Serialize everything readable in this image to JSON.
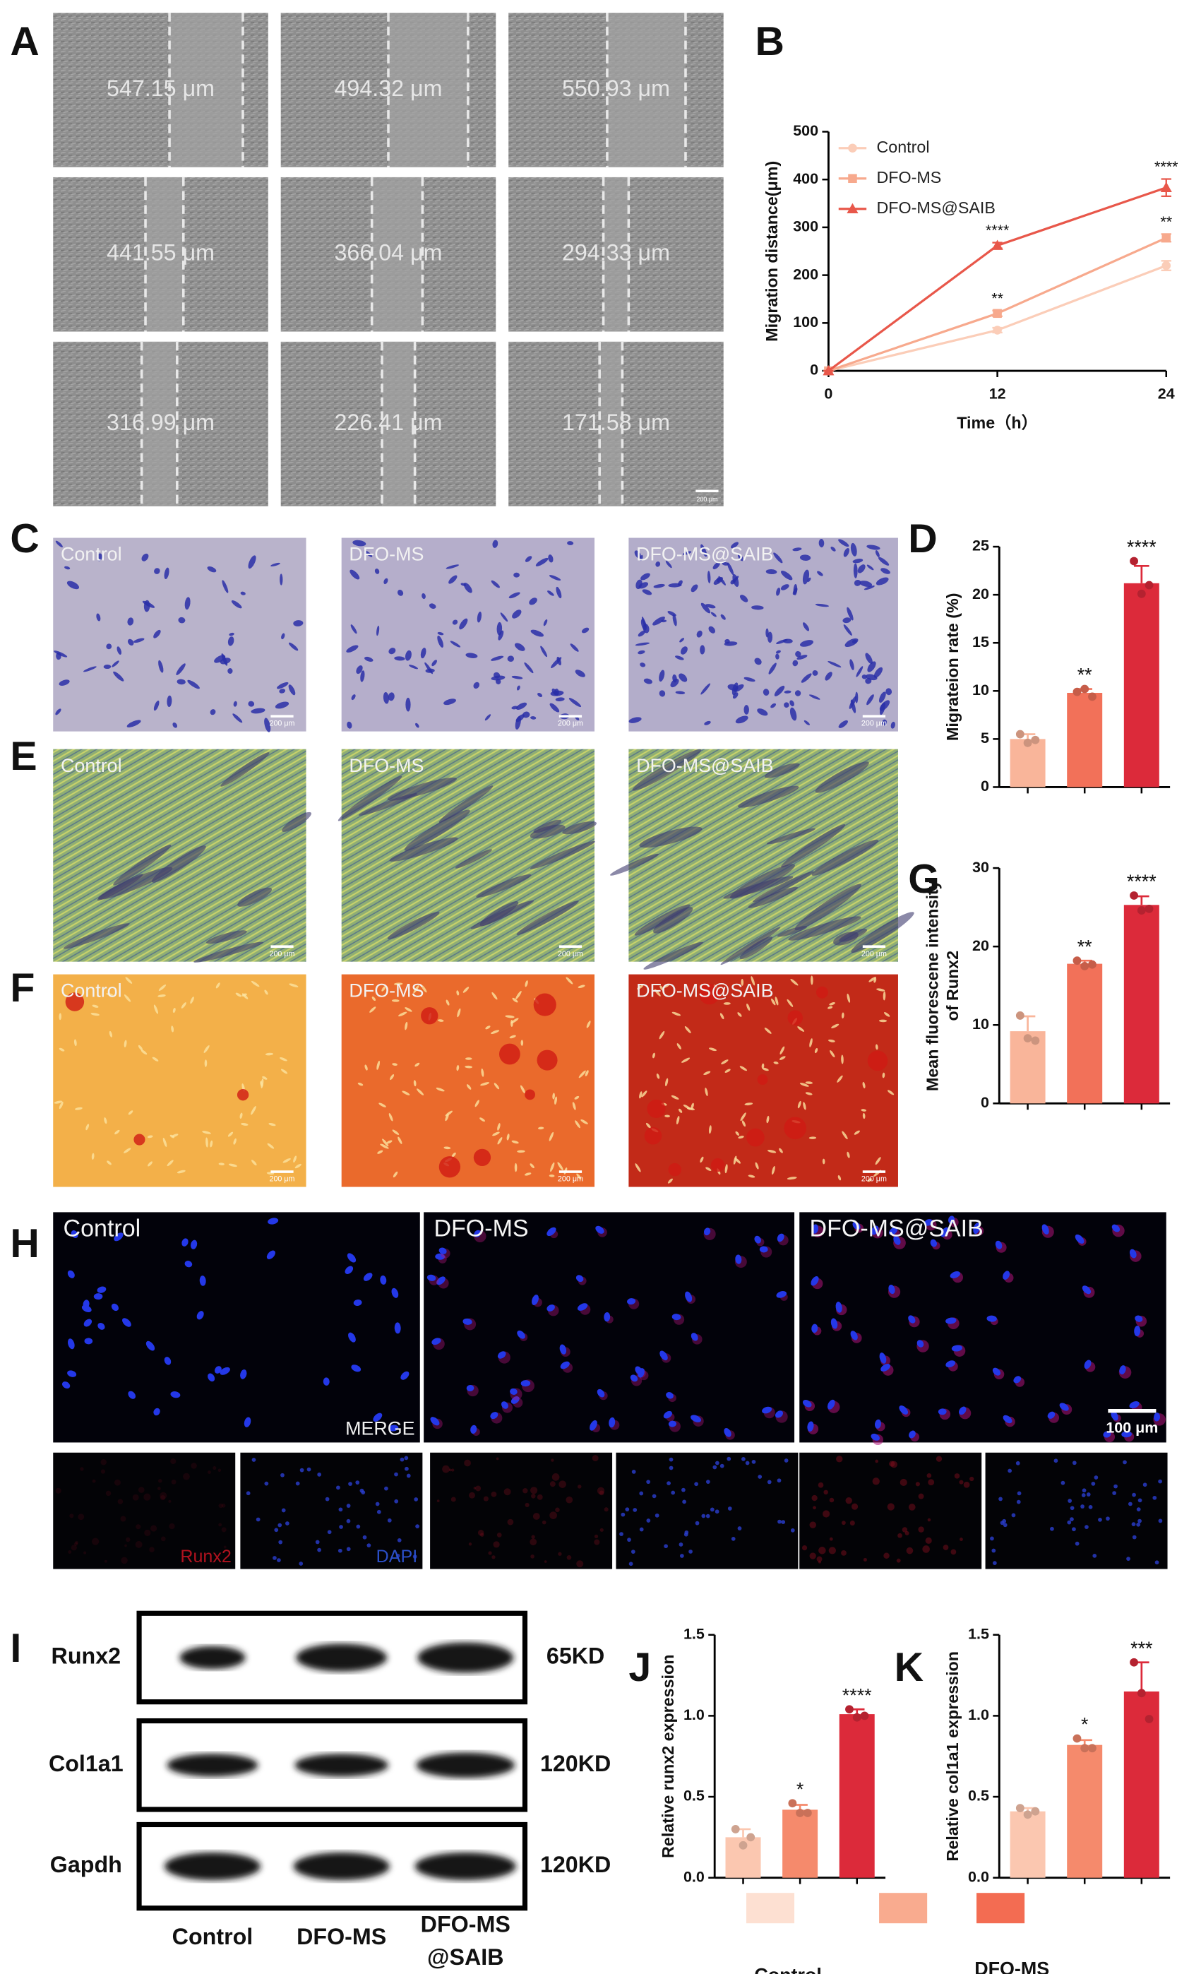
{
  "panel_letters": [
    "A",
    "B",
    "C",
    "D",
    "E",
    "F",
    "G",
    "H",
    "I",
    "J",
    "K"
  ],
  "panel_a": {
    "measurements": [
      "547.15 μm",
      "494.32 μm",
      "550.93 μm",
      "441.55 μm",
      "366.04 μm",
      "294.33 μm",
      "316.99 μm",
      "226.41 μm",
      "171.58 μm"
    ],
    "scale_bar": "200 μm"
  },
  "panels_c_e_f": {
    "groups": [
      "Control",
      "DFO-MS",
      "DFO-MS@SAIB"
    ],
    "scale_bar": "200 μm"
  },
  "panel_h": {
    "groups": [
      "Control",
      "DFO-MS",
      "DFO-MS@SAIB"
    ],
    "merge_label": "MERGE",
    "scale_bar": "100 μm",
    "channels": [
      "Runx2",
      "DAPI"
    ]
  },
  "panel_i": {
    "proteins": [
      "Runx2",
      "Col1a1",
      "Gapdh"
    ],
    "sizes": [
      "65KD",
      "120KD",
      "120KD"
    ],
    "lanes": [
      [
        "Control"
      ],
      [
        "DFO-MS"
      ],
      [
        "DFO-MS",
        "@SAIB"
      ]
    ]
  },
  "legend": {
    "entries": [
      {
        "name": [
          "Control"
        ],
        "color": "#fde0d2"
      },
      {
        "name": [
          "DFO-MS"
        ],
        "color": "#f9ab8f"
      },
      {
        "name": [
          "DFO-MS",
          "@SAIB"
        ],
        "color": "#f36c52"
      }
    ]
  },
  "chart_data": [
    {
      "type": "line",
      "ylabel": [
        "Migration distance(μm)"
      ],
      "xlabel": "Time（h）",
      "x": [
        0,
        12,
        24
      ],
      "xlim": [
        0,
        24
      ],
      "xticks": [
        0,
        12,
        24
      ],
      "ylim": [
        0,
        500
      ],
      "yticks": [
        0,
        100,
        200,
        300,
        400,
        500
      ],
      "legend": "upper left",
      "series": [
        {
          "name": "Control",
          "color": "#fbcdb8",
          "marker": "circle",
          "values": [
            0,
            85,
            220
          ],
          "errors": [
            0,
            5,
            10
          ]
        },
        {
          "name": "DFO-MS",
          "color": "#f7a98d",
          "marker": "square",
          "values": [
            0,
            120,
            278
          ],
          "errors": [
            0,
            6,
            8
          ],
          "significance": [
            null,
            "**",
            "**"
          ]
        },
        {
          "name": "DFO-MS@SAIB",
          "color": "#e8574a",
          "marker": "triangle",
          "values": [
            0,
            262,
            383
          ],
          "errors": [
            0,
            6,
            18
          ],
          "significance": [
            null,
            "****",
            "****"
          ]
        }
      ]
    },
    {
      "type": "bar",
      "ylabel": [
        "Migrateion rate (%)"
      ],
      "categories": [
        null,
        null,
        null
      ],
      "values": [
        5.0,
        9.8,
        21.2
      ],
      "errors": [
        0.5,
        0.4,
        1.8
      ],
      "points": [
        [
          5.5,
          4.6,
          4.9
        ],
        [
          9.9,
          10.2,
          9.4
        ],
        [
          23.5,
          20.1,
          21.0
        ]
      ],
      "colors": [
        "#f9b59a",
        "#f27159",
        "#dc2a3a"
      ],
      "significance": [
        null,
        "**",
        "****"
      ],
      "ylim": [
        0,
        25
      ],
      "yticks": [
        0,
        5,
        10,
        15,
        20,
        25
      ]
    },
    {
      "type": "bar",
      "ylabel": [
        "Mean fluorescene intensity",
        "of Runx2"
      ],
      "categories": [
        null,
        null,
        null
      ],
      "values": [
        9.2,
        17.8,
        25.3
      ],
      "errors": [
        1.9,
        0.4,
        1.1
      ],
      "points": [
        [
          11.2,
          8.3,
          8.0
        ],
        [
          18.2,
          17.5,
          17.7
        ],
        [
          26.5,
          24.6,
          24.8
        ]
      ],
      "colors": [
        "#f9b59a",
        "#f27159",
        "#dc2a3a"
      ],
      "significance": [
        null,
        "**",
        "****"
      ],
      "ylim": [
        0,
        30
      ],
      "yticks": [
        0,
        10,
        20,
        30
      ]
    },
    {
      "type": "bar",
      "ylabel": [
        "Relative runx2 expression"
      ],
      "categories": [
        null,
        null,
        null
      ],
      "values": [
        0.25,
        0.42,
        1.01
      ],
      "errors": [
        0.05,
        0.03,
        0.03
      ],
      "points": [
        [
          0.3,
          0.2,
          0.25
        ],
        [
          0.46,
          0.4,
          0.4
        ],
        [
          1.04,
          0.99,
          1.0
        ]
      ],
      "colors": [
        "#fbc7b0",
        "#f58a6c",
        "#dc2a3a"
      ],
      "significance": [
        null,
        "*",
        "****"
      ],
      "ylim": [
        0,
        1.5
      ],
      "yticks": [
        {
          "value": 0,
          "label": "0.0"
        },
        {
          "value": 0.5,
          "label": "0.5"
        },
        {
          "value": 1,
          "label": "1.0"
        },
        {
          "value": 1.5,
          "label": "1.5"
        }
      ]
    },
    {
      "type": "bar",
      "ylabel": [
        "Relative col1a1 expression"
      ],
      "categories": [
        null,
        null,
        null
      ],
      "values": [
        0.41,
        0.82,
        1.15
      ],
      "errors": [
        0.02,
        0.03,
        0.18
      ],
      "points": [
        [
          0.43,
          0.39,
          0.41
        ],
        [
          0.86,
          0.8,
          0.8
        ],
        [
          1.33,
          1.14,
          0.98
        ]
      ],
      "colors": [
        "#fbc7b0",
        "#f58a6c",
        "#dc2a3a"
      ],
      "significance": [
        null,
        "*",
        "***"
      ],
      "ylim": [
        0,
        1.5
      ],
      "yticks": [
        {
          "value": 0,
          "label": "0.0"
        },
        {
          "value": 0.5,
          "label": "0.5"
        },
        {
          "value": 1,
          "label": "1.0"
        },
        {
          "value": 1.5,
          "label": "1.5"
        }
      ]
    }
  ]
}
